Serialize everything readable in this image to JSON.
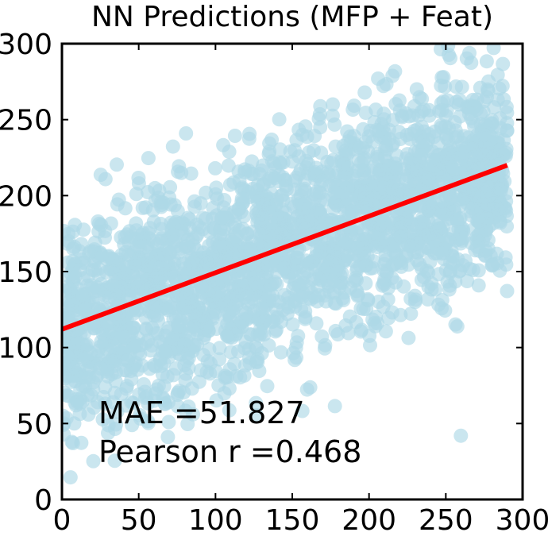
{
  "chart_data": {
    "type": "scatter",
    "title": "NN Predictions (MFP + Feat)",
    "xlabel": "",
    "ylabel": "",
    "xlim": [
      0,
      300
    ],
    "ylim": [
      0,
      300
    ],
    "xticks": [
      0,
      50,
      100,
      150,
      200,
      250,
      300
    ],
    "yticks": [
      0,
      50,
      100,
      150,
      200,
      250,
      300
    ],
    "xtick_labels": [
      "0",
      "50",
      "100",
      "150",
      "200",
      "250",
      "300"
    ],
    "ytick_labels": [
      "0",
      "50",
      "100",
      "150",
      "200",
      "250",
      "300"
    ],
    "grid": false,
    "legend": "none",
    "point_color": "#add8e6",
    "fit_line_color": "#ff0000",
    "fit_line": {
      "x": [
        0,
        290
      ],
      "y": [
        112,
        220
      ]
    },
    "scatter_extent": {
      "x": [
        0,
        290
      ],
      "y": [
        0,
        300
      ]
    },
    "annotations": [
      "MAE =51.827",
      "Pearson r =0.468"
    ]
  }
}
